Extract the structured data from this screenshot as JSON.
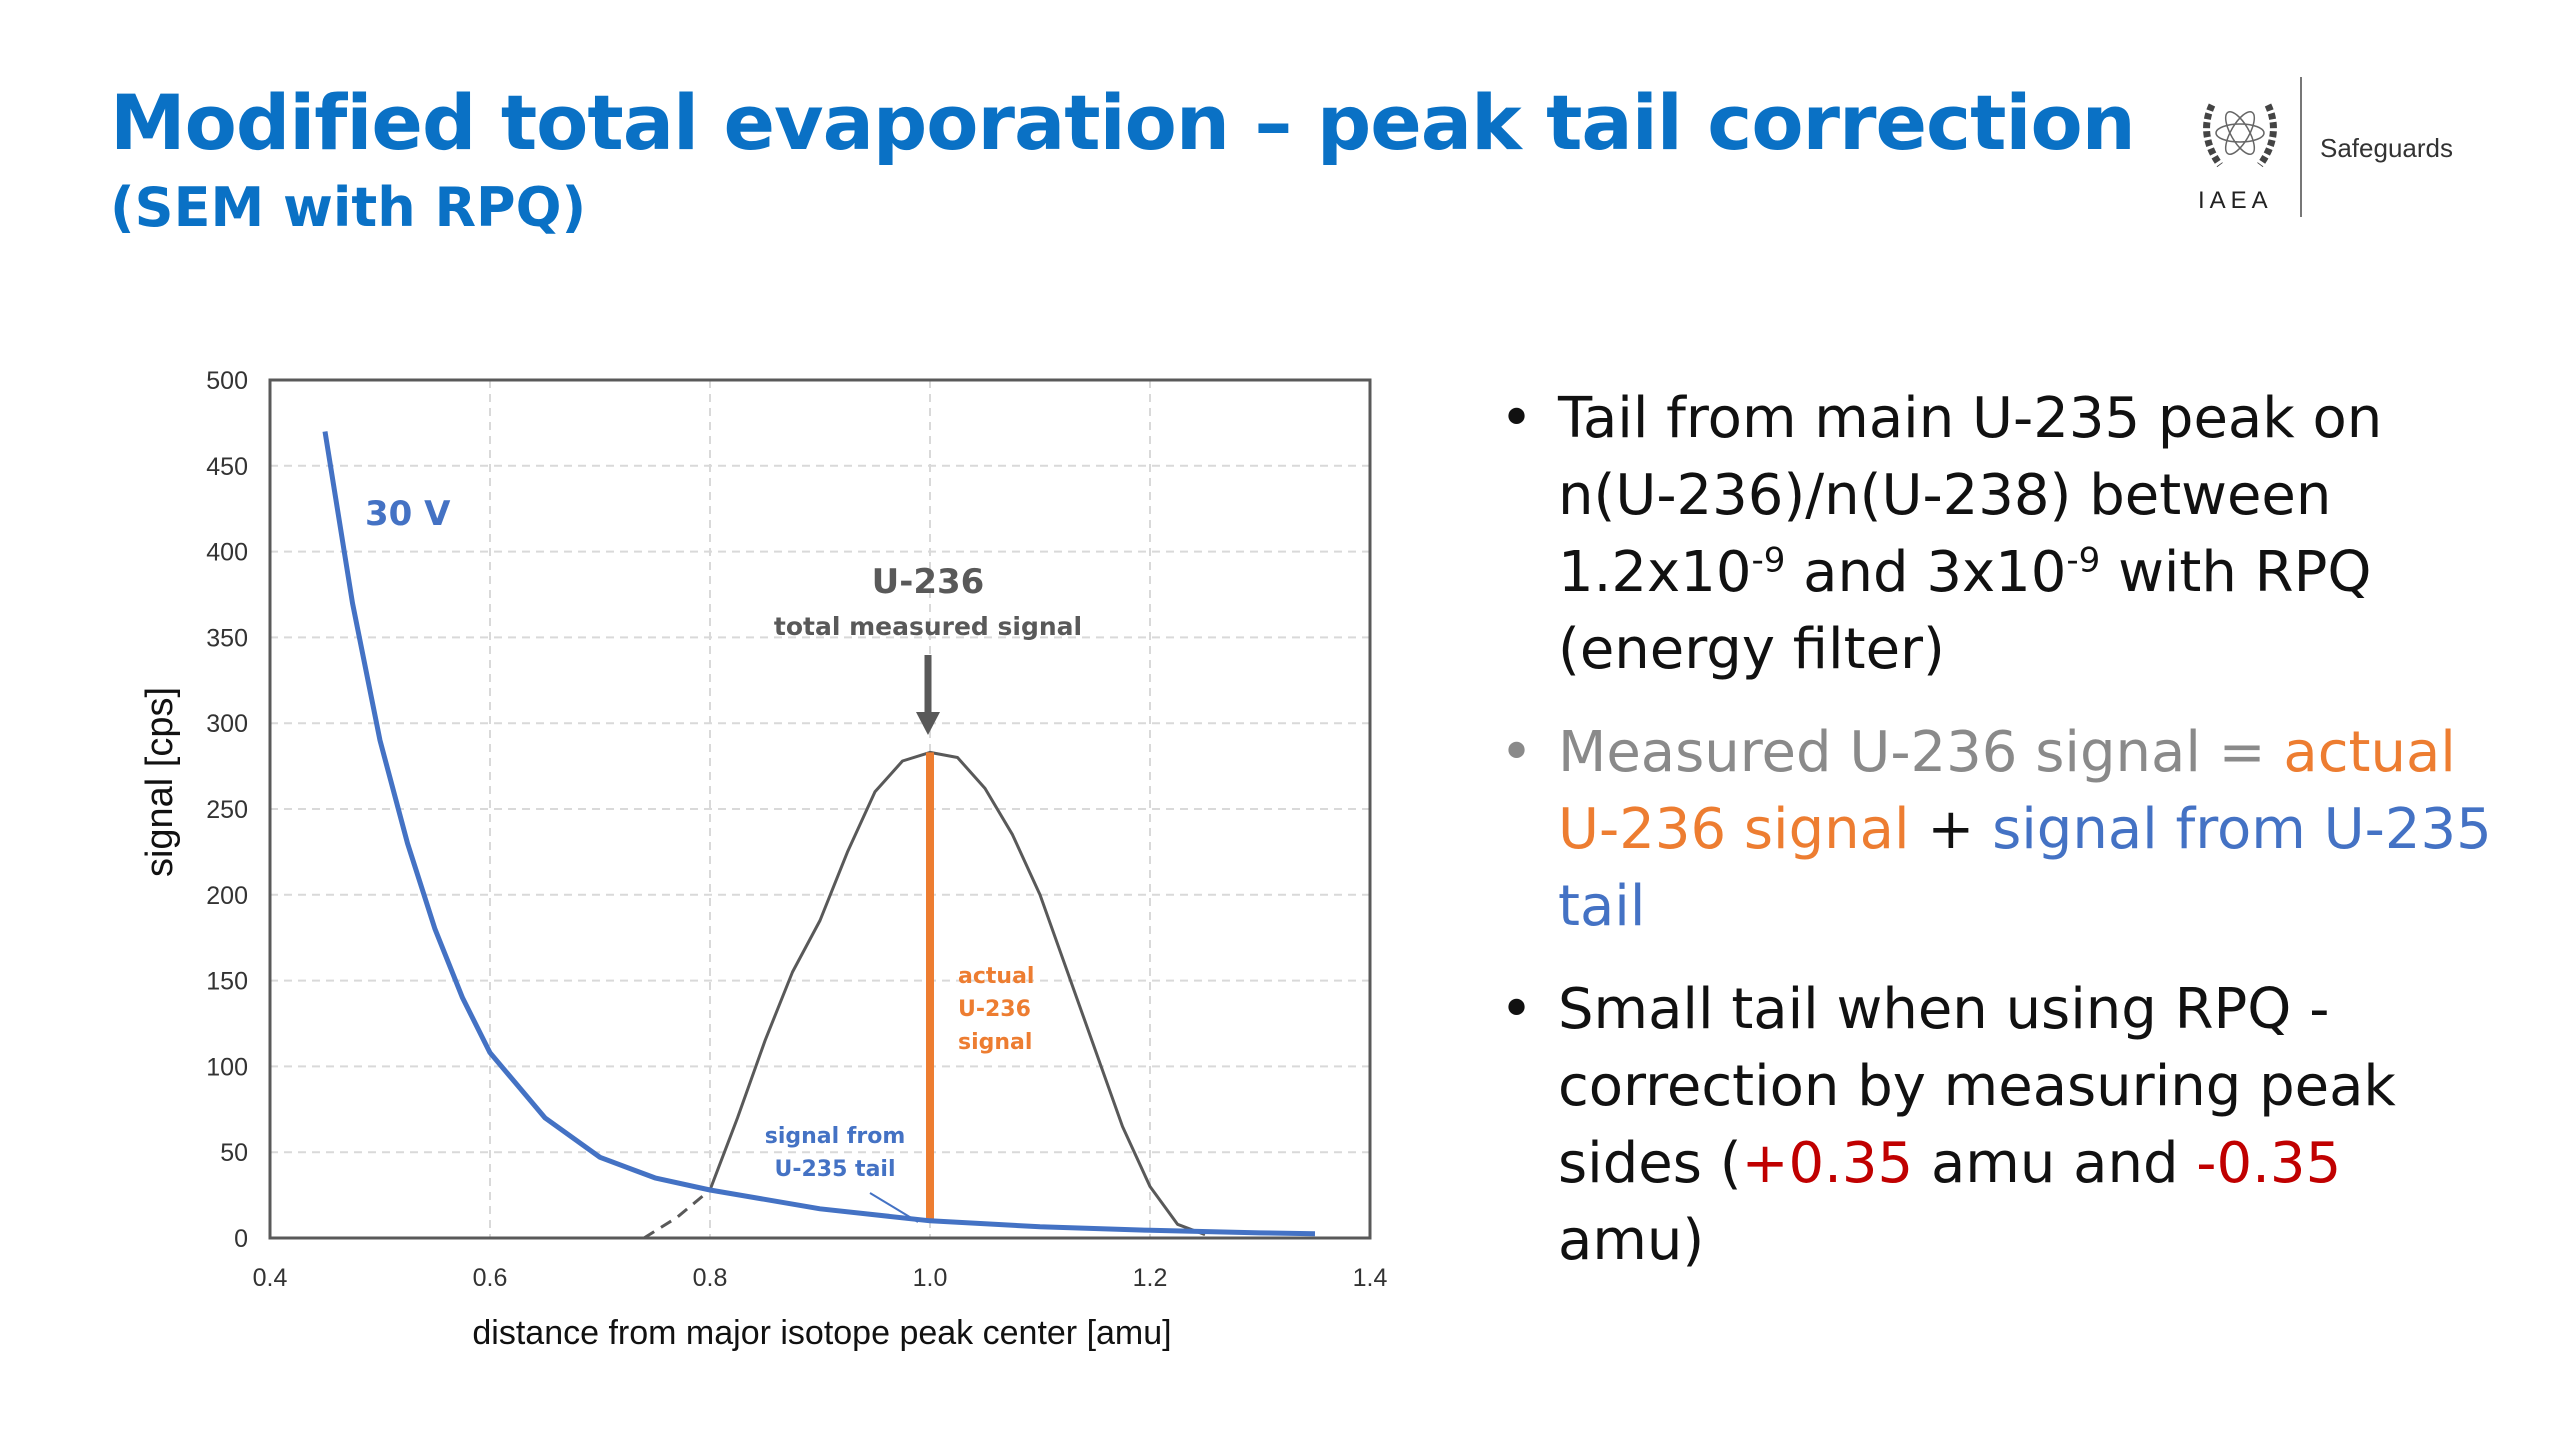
{
  "header": {
    "title": "Modified total evaporation – peak tail correction",
    "subtitle": "(SEM with RPQ)"
  },
  "logo": {
    "org": "IAEA",
    "division": "Safeguards"
  },
  "bullets": [
    {
      "line1": "Tail from main U-235 peak on n(U-236)/n(U-238) between 1.2x10",
      "exp1": "-9",
      "mid": " and 3x10",
      "exp2": "-9",
      "end": " with RPQ (energy filter)"
    },
    {
      "part1": "Measured U-236 signal = ",
      "part2": "actual U-236 signal",
      "part3": " + ",
      "part4": "signal from U-235 tail"
    },
    {
      "part1": "Small tail when using RPQ - correction by measuring peak sides (",
      "part2": "+0.35",
      "part3": " amu and ",
      "part4": "-0.35",
      "part5": " amu)"
    }
  ],
  "colors": {
    "title": "#0a71c5",
    "tail": "#4472c4",
    "actual": "#ed7d31",
    "peak": "#595959",
    "highlight_red": "#c00000"
  },
  "chart_data": {
    "type": "line",
    "xlabel": "distance from major isotope peak center [amu]",
    "ylabel": "signal [cps]",
    "xlim": [
      0.4,
      1.4
    ],
    "ylim": [
      0,
      500
    ],
    "xticks": [
      "0.4",
      "0.6",
      "0.8",
      "1.0",
      "1.2",
      "1.4"
    ],
    "yticks": [
      "0",
      "50",
      "100",
      "150",
      "200",
      "250",
      "300",
      "350",
      "400",
      "450",
      "500"
    ],
    "grid": true,
    "series": [
      {
        "name": "30 V",
        "color": "#4472c4",
        "x": [
          0.45,
          0.475,
          0.5,
          0.525,
          0.55,
          0.575,
          0.6,
          0.65,
          0.7,
          0.75,
          0.8,
          0.9,
          1.0,
          1.1,
          1.2,
          1.3,
          1.35
        ],
        "y": [
          470,
          370,
          290,
          230,
          180,
          140,
          108,
          70,
          47,
          35,
          28,
          17,
          10,
          6.5,
          4.5,
          3,
          2.5
        ]
      },
      {
        "color": "#595959",
        "x": [
          0.8,
          0.825,
          0.85,
          0.875,
          0.9,
          0.925,
          0.95,
          0.975,
          1.0,
          1.025,
          1.05,
          1.075,
          1.1,
          1.125,
          1.15,
          1.175,
          1.2,
          1.225,
          1.25
        ],
        "y": [
          28,
          70,
          115,
          155,
          185,
          225,
          260,
          278,
          283,
          280,
          262,
          235,
          200,
          155,
          110,
          65,
          30,
          8,
          2
        ]
      }
    ],
    "extrapolation": {
      "x": [
        0.74,
        0.77,
        0.8
      ],
      "y": [
        0,
        12,
        28
      ]
    },
    "annotations": {
      "series_label": "30 V",
      "peak_title": "U-236",
      "peak_sub": "total measured signal",
      "actual": [
        "actual",
        "U-236",
        "signal"
      ],
      "tail": [
        "signal from",
        "U-235 tail"
      ],
      "actual_bar": {
        "x": 1.0,
        "y_from": 10,
        "y_to": 283
      }
    }
  }
}
